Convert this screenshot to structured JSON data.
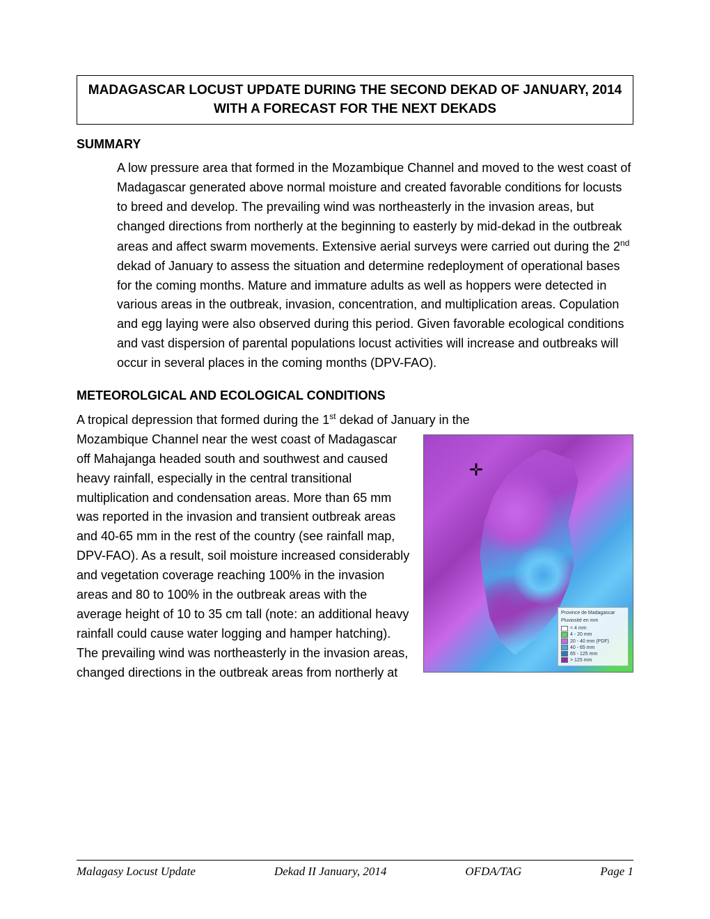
{
  "title": "MADAGASCAR LOCUST UPDATE DURING THE SECOND DEKAD OF JANUARY, 2014 WITH A FORECAST FOR THE NEXT DEKADS",
  "headings": {
    "summary": "SUMMARY",
    "meteo": "METEOROLGICAL AND ECOLOGICAL CONDITIONS"
  },
  "summary_text": "A low pressure area that formed in the Mozambique Channel and moved to the west coast of Madagascar generated above normal moisture and created favorable conditions for locusts to breed and develop. The prevailing wind was northeasterly in the invasion areas, but changed directions from northerly at the beginning to easterly by mid-dekad in the outbreak areas and affect swarm movements. Extensive aerial surveys were carried out during the 2",
  "summary_sup1": "nd",
  "summary_text_after": " dekad of January to assess the situation and determine redeployment of operational bases for the coming months. Mature and immature adults as well as hoppers were detected in various areas in the outbreak, invasion, concentration, and multiplication areas. Copulation and egg laying were also observed during this period. Given favorable ecological conditions and vast dispersion of parental populations locust activities will increase and outbreaks will occur in several places in the coming months (DPV-FAO).",
  "meteo_lead_before": "A tropical depression that formed during the 1",
  "meteo_lead_sup": "st",
  "meteo_lead_after": " dekad of January in the",
  "meteo_wrapped": "Mozambique Channel near the west coast of Madagascar off Mahajanga headed south and southwest and caused heavy rainfall, especially in the central transitional multiplication and condensation areas. More than 65 mm was reported in the invasion and transient outbreak areas and 40-65 mm in the rest of the country (see rainfall map, DPV-FAO). As a result, soil moisture increased considerably and vegetation coverage reaching 100% in the invasion areas and 80 to 100% in the outbreak areas with the average height of 10 to 35 cm tall (note: an additional heavy rainfall could cause water logging and hamper hatching). The prevailing wind was northeasterly in the invasion areas, changed directions in the outbreak areas from northerly at",
  "map": {
    "compass_glyph": "✛",
    "legend_title": "Province de Madagascar",
    "legend_subtitle": "Pluviosité en mm",
    "rows": [
      {
        "color": "#ffffff",
        "label": "< 4 mm"
      },
      {
        "color": "#58d858",
        "label": "4 - 20 mm"
      },
      {
        "color": "#c868e8",
        "label": "20 - 40 mm (PDF)"
      },
      {
        "color": "#4aa8e8",
        "label": "40 - 65 mm"
      },
      {
        "color": "#2a7bb8",
        "label": "65 - 125 mm"
      },
      {
        "color": "#8a2ca8",
        "label": "> 125 mm"
      }
    ],
    "background_colors": {
      "sea_purple": "#a445c9",
      "mid_purple": "#b855d9",
      "dark_purple": "#9a3cb8",
      "light_purple": "#c868e8",
      "blue": "#4aa8e8",
      "light_blue": "#6ac8f8",
      "green": "#58d858"
    }
  },
  "footer": {
    "left": "Malagasy Locust Update",
    "center": "Dekad II January, 2014",
    "right1": "OFDA/TAG",
    "right2": "Page 1"
  }
}
